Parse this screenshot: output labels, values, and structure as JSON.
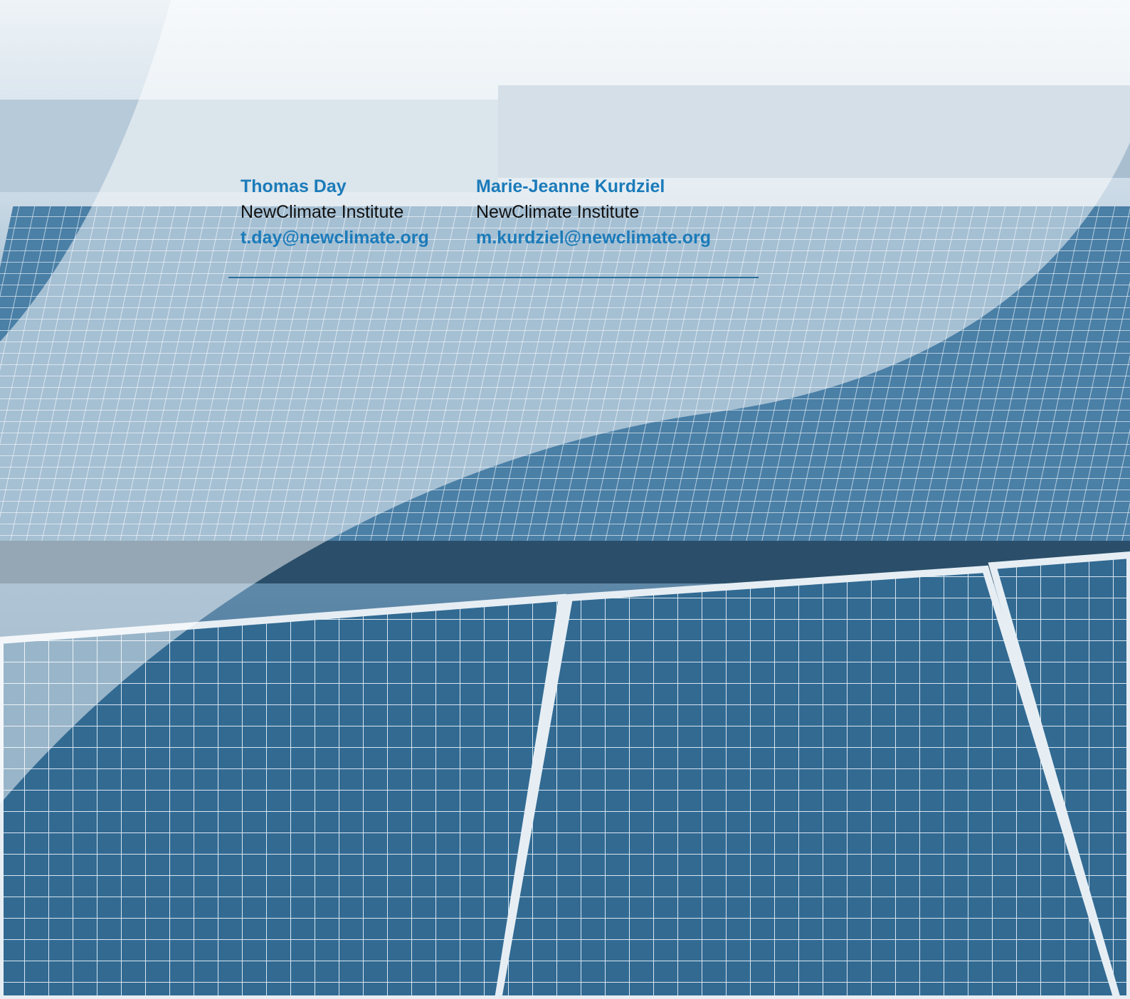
{
  "authors": [
    {
      "name": "Thomas Day",
      "affiliation": "NewClimate Institute",
      "email": "t.day@newclimate.org"
    },
    {
      "name": "Marie-Jeanne Kurdziel",
      "affiliation": "NewClimate Institute",
      "email": "m.kurdziel@newclimate.org"
    }
  ]
}
